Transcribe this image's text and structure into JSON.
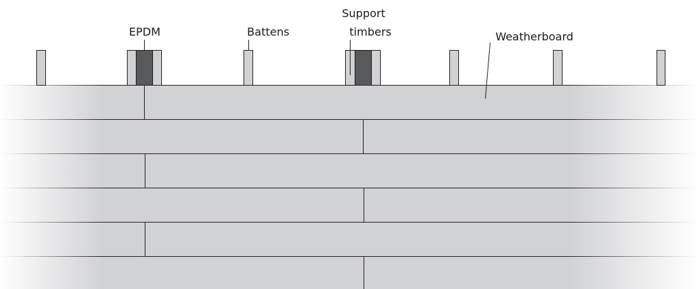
{
  "labels": {
    "epdm": "EPDM",
    "battens": "Battens",
    "support_line1": "Support",
    "support_line2": "timbers",
    "weatherboard": "Weatherboard"
  },
  "colors": {
    "board": "#d1d2d4",
    "board_fade_edge": "#ffffff",
    "batten": "#d1d2d4",
    "epdm": "#58595b",
    "line": "#231f20",
    "text": "#1a1a1a"
  },
  "layout": {
    "board_count": 6,
    "batten_count": 7,
    "joint_pattern": "alternating left / centre"
  }
}
